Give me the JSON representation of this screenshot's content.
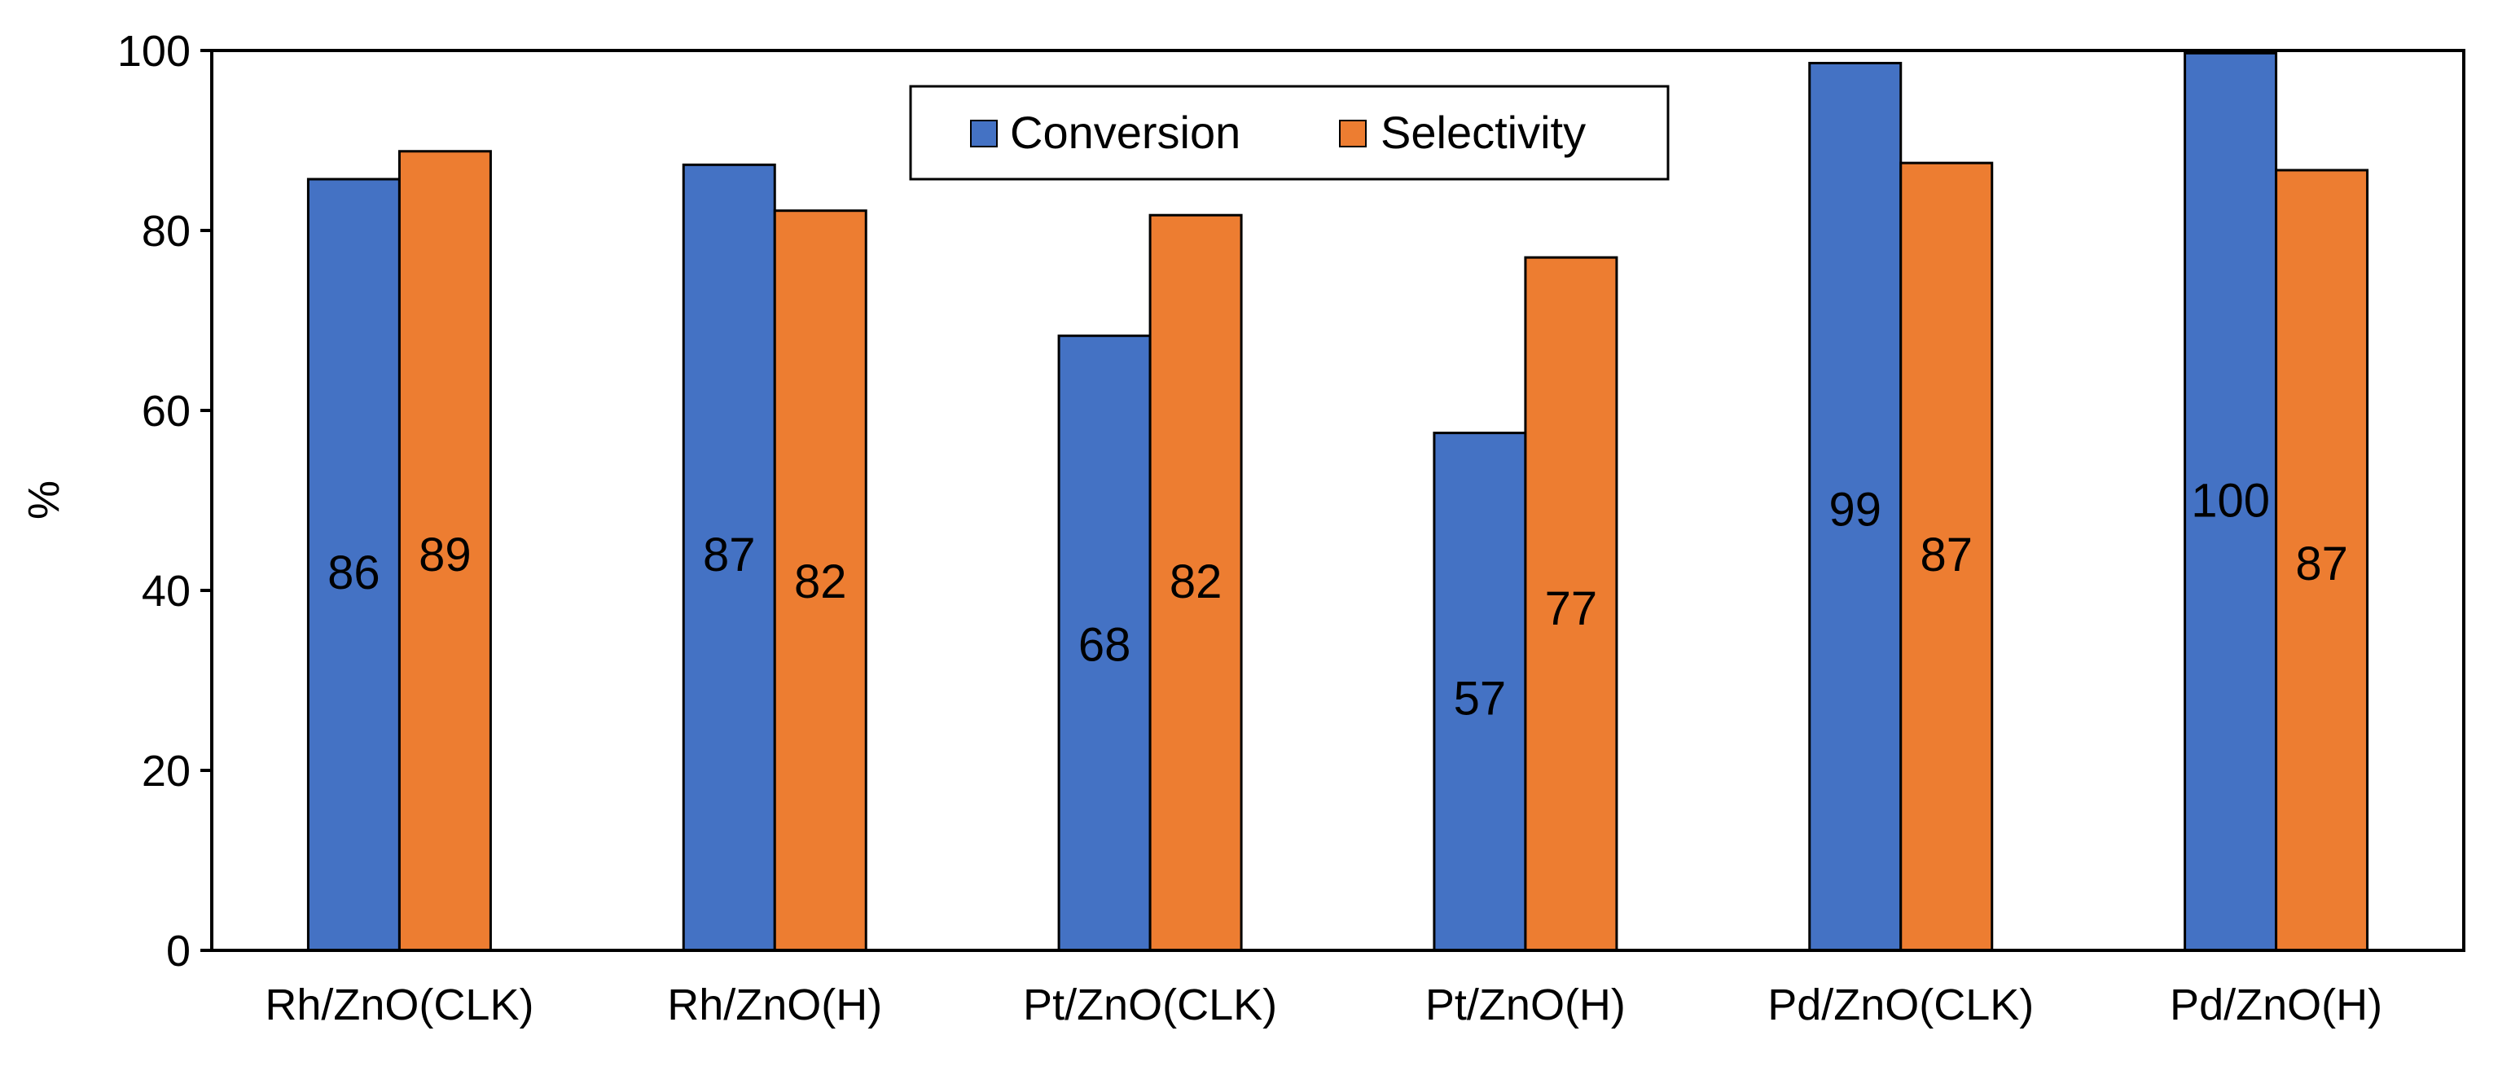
{
  "chart_data": {
    "type": "bar",
    "title": "",
    "xlabel": "",
    "ylabel": "%",
    "ylim": [
      0,
      100
    ],
    "yticks": [
      0,
      20,
      40,
      60,
      80,
      100
    ],
    "grid": false,
    "legend_position": "top-center",
    "categories": [
      "Rh/ZnO(CLK)",
      "Rh/ZnO(H)",
      "Pt/ZnO(CLK)",
      "Pt/ZnO(H)",
      "Pd/ZnO(CLK)",
      "Pd/ZnO(H)"
    ],
    "series": [
      {
        "name": "Conversion",
        "color": "#4472C4",
        "values": [
          85.7,
          87.3,
          68.3,
          57.5,
          98.6,
          99.7
        ],
        "labels": [
          "86",
          "87",
          "68",
          "57",
          "99",
          "100"
        ],
        "label_y": [
          42,
          44,
          34,
          28,
          49,
          50
        ]
      },
      {
        "name": "Selectivity",
        "color": "#ED7D31",
        "values": [
          88.8,
          82.2,
          81.7,
          77.0,
          87.5,
          86.7
        ],
        "labels": [
          "89",
          "82",
          "82",
          "77",
          "87",
          "87"
        ],
        "label_y": [
          44,
          41,
          41,
          38,
          44,
          43
        ]
      }
    ]
  }
}
